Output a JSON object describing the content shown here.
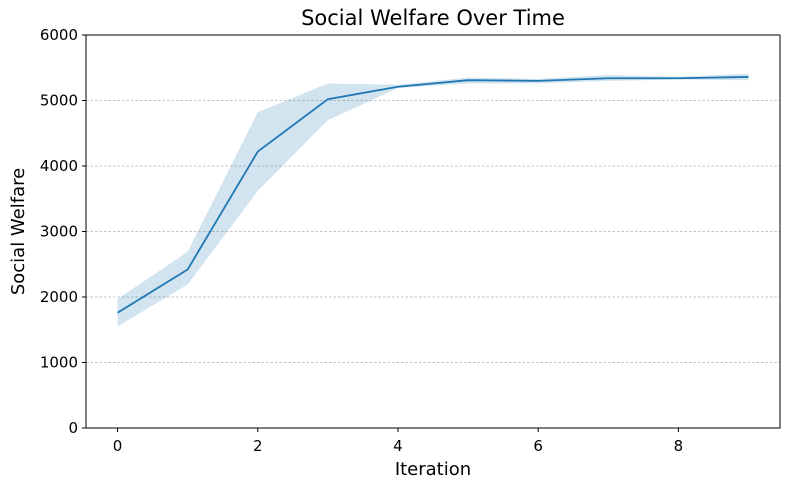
{
  "chart_data": {
    "type": "line",
    "title": "Social Welfare Over Time",
    "xlabel": "Iteration",
    "ylabel": "Social Welfare",
    "xlim": [
      -0.45,
      9.45
    ],
    "ylim": [
      0,
      6000
    ],
    "xticks": [
      0,
      2,
      4,
      6,
      8
    ],
    "yticks": [
      0,
      1000,
      2000,
      3000,
      4000,
      5000,
      6000
    ],
    "grid": "horizontal dashed",
    "x": [
      0,
      1,
      2,
      3,
      4,
      5,
      6,
      7,
      8,
      9
    ],
    "series": [
      {
        "values": [
          1760,
          2420,
          4220,
          5020,
          5210,
          5310,
          5300,
          5340,
          5340,
          5360
        ],
        "lower": [
          1550,
          2190,
          3620,
          4700,
          5190,
          5260,
          5260,
          5300,
          5320,
          5310
        ],
        "upper": [
          1970,
          2690,
          4820,
          5260,
          5240,
          5350,
          5330,
          5390,
          5360,
          5410
        ]
      }
    ],
    "colors": {
      "line": "#1f77b4",
      "band": "#1f77b4",
      "grid": "#b0b0b0"
    }
  }
}
